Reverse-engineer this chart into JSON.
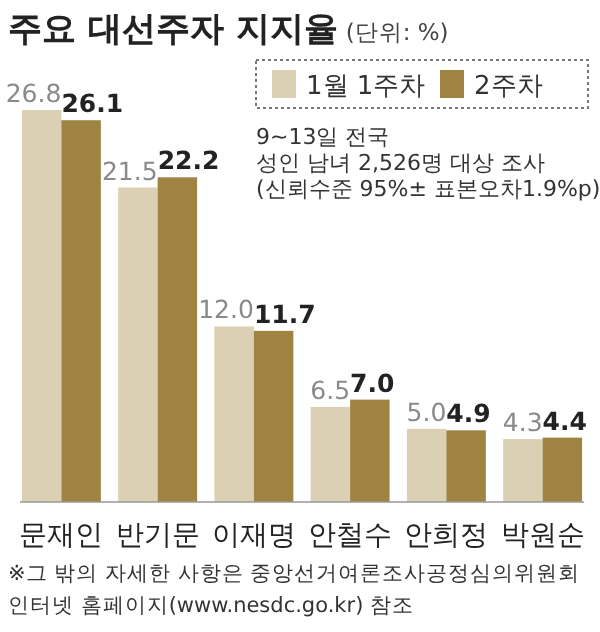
{
  "chart_data": {
    "type": "bar",
    "title": "주요 대선주자 지지율",
    "subtitle": "(단위: %)",
    "categories": [
      "문재인",
      "반기문",
      "이재명",
      "안철수",
      "안희정",
      "박원순"
    ],
    "series": [
      {
        "name": "1월 1주차",
        "color": "#dcd0b4",
        "values": [
          26.8,
          21.5,
          12.0,
          6.5,
          5.0,
          4.3
        ],
        "value_labels": [
          "26.8",
          "21.5",
          "12.0",
          "6.5",
          "5.0",
          "4.3"
        ]
      },
      {
        "name": "2주차",
        "color": "#9f8342",
        "values": [
          26.1,
          22.2,
          11.7,
          7.0,
          4.9,
          4.4
        ],
        "value_labels": [
          "26.1",
          "22.2",
          "11.7",
          "7.0",
          "4.9",
          "4.4"
        ]
      }
    ],
    "legend": "top right",
    "annotations": [
      "9~13일 전국",
      "성인 남녀 2,526명 대상 조사",
      "(신뢰수준 95%± 표본오차1.9%p)",
      "※그 밖의 자세한 사항은 중앙선거여론조사공정심의위원회",
      "인터넷 홈페이지(www.nesdc.go.kr) 참조"
    ]
  }
}
